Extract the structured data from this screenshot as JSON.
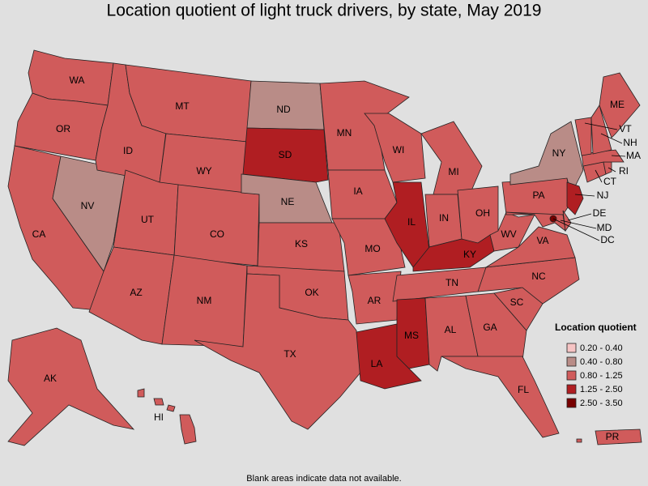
{
  "title": "Location quotient of light truck drivers, by state, May 2019",
  "footnote": "Blank areas indicate data not available.",
  "legend": {
    "title": "Location quotient",
    "classes": [
      {
        "label": "0.20 - 0.40",
        "color": "#f6c4c4"
      },
      {
        "label": "0.40 - 0.80",
        "color": "#b98c87"
      },
      {
        "label": "0.80 - 1.25",
        "color": "#d05b5b"
      },
      {
        "label": "1.25 - 2.50",
        "color": "#b01e22"
      },
      {
        "label": "2.50 - 3.50",
        "color": "#780000"
      }
    ]
  },
  "states": [
    {
      "label": "WA",
      "range": "0.80 - 1.25"
    },
    {
      "label": "OR",
      "range": "0.80 - 1.25"
    },
    {
      "label": "CA",
      "range": "0.80 - 1.25"
    },
    {
      "label": "NV",
      "range": "0.40 - 0.80"
    },
    {
      "label": "ID",
      "range": "0.80 - 1.25"
    },
    {
      "label": "MT",
      "range": "0.80 - 1.25"
    },
    {
      "label": "WY",
      "range": "0.80 - 1.25"
    },
    {
      "label": "UT",
      "range": "0.80 - 1.25"
    },
    {
      "label": "CO",
      "range": "0.80 - 1.25"
    },
    {
      "label": "AZ",
      "range": "0.80 - 1.25"
    },
    {
      "label": "NM",
      "range": "0.80 - 1.25"
    },
    {
      "label": "ND",
      "range": "0.40 - 0.80"
    },
    {
      "label": "SD",
      "range": "1.25 - 2.50"
    },
    {
      "label": "NE",
      "range": "0.40 - 0.80"
    },
    {
      "label": "KS",
      "range": "0.80 - 1.25"
    },
    {
      "label": "OK",
      "range": "0.80 - 1.25"
    },
    {
      "label": "TX",
      "range": "0.80 - 1.25"
    },
    {
      "label": "MN",
      "range": "0.80 - 1.25"
    },
    {
      "label": "IA",
      "range": "0.80 - 1.25"
    },
    {
      "label": "MO",
      "range": "0.80 - 1.25"
    },
    {
      "label": "AR",
      "range": "0.80 - 1.25"
    },
    {
      "label": "LA",
      "range": "1.25 - 2.50"
    },
    {
      "label": "WI",
      "range": "0.80 - 1.25"
    },
    {
      "label": "IL",
      "range": "1.25 - 2.50"
    },
    {
      "label": "MI",
      "range": "0.80 - 1.25"
    },
    {
      "label": "IN",
      "range": "0.80 - 1.25"
    },
    {
      "label": "OH",
      "range": "0.80 - 1.25"
    },
    {
      "label": "KY",
      "range": "1.25 - 2.50"
    },
    {
      "label": "TN",
      "range": "0.80 - 1.25"
    },
    {
      "label": "MS",
      "range": "1.25 - 2.50"
    },
    {
      "label": "AL",
      "range": "0.80 - 1.25"
    },
    {
      "label": "GA",
      "range": "0.80 - 1.25"
    },
    {
      "label": "FL",
      "range": "0.80 - 1.25"
    },
    {
      "label": "SC",
      "range": "0.80 - 1.25"
    },
    {
      "label": "NC",
      "range": "0.80 - 1.25"
    },
    {
      "label": "VA",
      "range": "0.80 - 1.25"
    },
    {
      "label": "WV",
      "range": "0.80 - 1.25"
    },
    {
      "label": "PA",
      "range": "0.80 - 1.25"
    },
    {
      "label": "NY",
      "range": "0.40 - 0.80"
    },
    {
      "label": "NJ",
      "range": "1.25 - 2.50"
    },
    {
      "label": "MD",
      "range": "0.80 - 1.25"
    },
    {
      "label": "DE",
      "range": "0.80 - 1.25"
    },
    {
      "label": "DC",
      "range": "2.50 - 3.50"
    },
    {
      "label": "CT",
      "range": "0.80 - 1.25"
    },
    {
      "label": "RI",
      "range": "0.80 - 1.25"
    },
    {
      "label": "MA",
      "range": "0.80 - 1.25"
    },
    {
      "label": "VT",
      "range": "0.80 - 1.25"
    },
    {
      "label": "NH",
      "range": "0.80 - 1.25"
    },
    {
      "label": "ME",
      "range": "0.80 - 1.25"
    },
    {
      "label": "AK",
      "range": "0.80 - 1.25"
    },
    {
      "label": "HI",
      "range": "0.80 - 1.25"
    },
    {
      "label": "PR",
      "range": "0.80 - 1.25"
    }
  ]
}
